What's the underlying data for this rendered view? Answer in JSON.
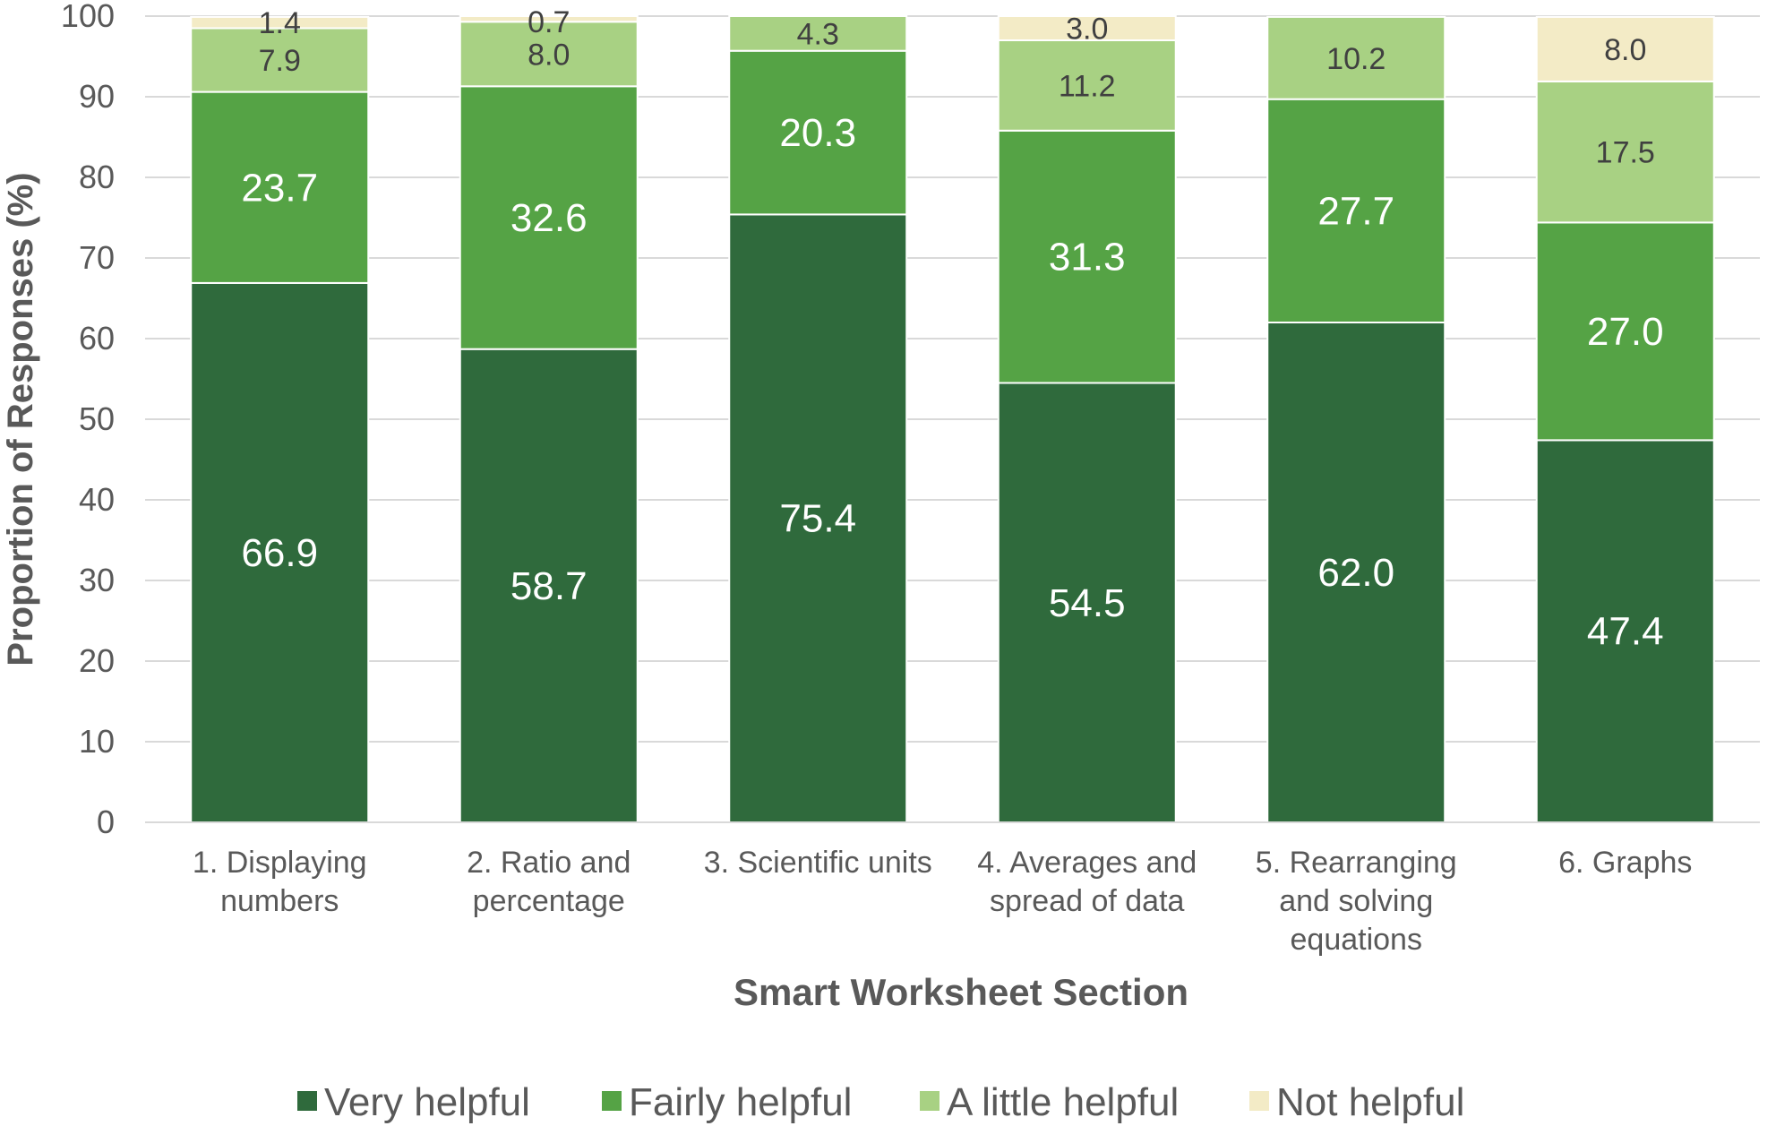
{
  "chart_data": {
    "type": "bar",
    "stacked": true,
    "title": "",
    "xlabel": "Smart Worksheet Section",
    "ylabel": "Proportion of Responses (%)",
    "ylim": [
      0,
      100
    ],
    "yticks": [
      "0",
      "10",
      "20",
      "30",
      "40",
      "50",
      "60",
      "70",
      "80",
      "90",
      "100"
    ],
    "grid": true,
    "legend_position": "bottom",
    "categories": [
      [
        "1. Displaying",
        "numbers"
      ],
      [
        "2. Ratio and",
        "percentage"
      ],
      [
        "3. Scientific units"
      ],
      [
        "4. Averages and",
        "spread of data"
      ],
      [
        "5. Rearranging",
        "and solving",
        "equations"
      ],
      [
        "6. Graphs"
      ]
    ],
    "series": [
      {
        "name": "Very helpful",
        "color": "#2f6a3c",
        "values": [
          66.9,
          58.7,
          75.4,
          54.5,
          62.0,
          47.4
        ],
        "labels": [
          "66.9",
          "58.7",
          "75.4",
          "54.5",
          "62.0",
          "47.4"
        ]
      },
      {
        "name": "Fairly helpful",
        "color": "#55a345",
        "values": [
          23.7,
          32.6,
          20.3,
          31.3,
          27.7,
          27.0
        ],
        "labels": [
          "23.7",
          "32.6",
          "20.3",
          "31.3",
          "27.7",
          "27.0"
        ]
      },
      {
        "name": "A little helpful",
        "color": "#a8d183",
        "values": [
          7.9,
          8.0,
          4.3,
          11.2,
          10.2,
          17.5
        ],
        "labels": [
          "7.9",
          "8.0",
          "4.3",
          "11.2",
          "10.2",
          "17.5"
        ]
      },
      {
        "name": "Not helpful",
        "color": "#f3ebc6",
        "values": [
          1.4,
          0.7,
          0,
          3.0,
          0,
          8.0
        ],
        "labels": [
          "1.4",
          "0.7",
          "",
          "3.0",
          "",
          "8.0"
        ]
      }
    ]
  }
}
